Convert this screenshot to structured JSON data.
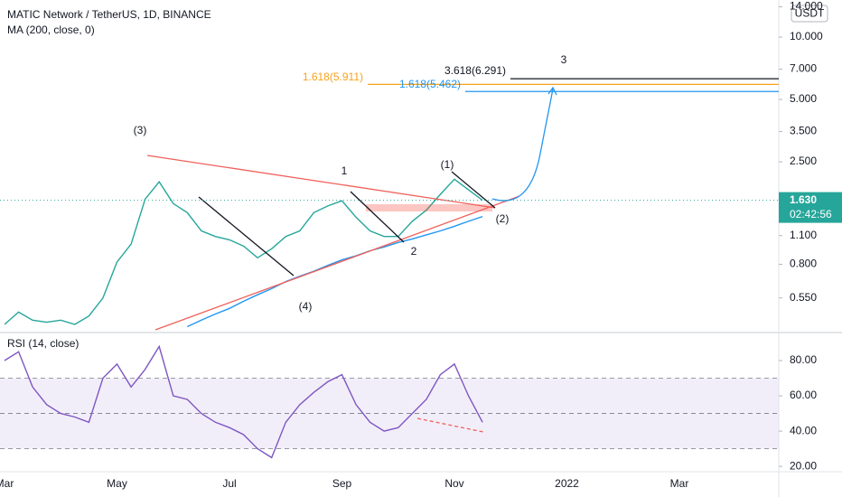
{
  "header": {
    "symbol": "MATIC Network / TetherUS, 1D, BINANCE",
    "indicator": "MA (200, close, 0)",
    "currency": "USDT"
  },
  "chart_data": [
    {
      "type": "line",
      "log_scale": true,
      "categories": [
        "Mar",
        null,
        null,
        null,
        null,
        null,
        null,
        null,
        "May",
        null,
        null,
        null,
        null,
        null,
        null,
        null,
        "Jul",
        null,
        null,
        null,
        null,
        null,
        null,
        null,
        "Sep",
        null,
        null,
        null,
        null,
        null,
        null,
        null,
        "Nov",
        null,
        null,
        null,
        null,
        null,
        null,
        null,
        "2022",
        null,
        null,
        null,
        null,
        null,
        null,
        null,
        "Mar",
        null,
        null,
        null,
        null,
        null,
        null,
        null
      ],
      "series": [
        {
          "name": "MATIC/USDT",
          "color": "#26a69a",
          "values": [
            0.41,
            0.47,
            0.43,
            0.42,
            0.43,
            0.41,
            0.45,
            0.55,
            0.82,
            1.0,
            1.65,
            2.0,
            1.57,
            1.42,
            1.16,
            1.09,
            1.05,
            0.98,
            0.86,
            0.95,
            1.09,
            1.16,
            1.42,
            1.53,
            1.62,
            1.35,
            1.16,
            1.09,
            1.09,
            1.29,
            1.46,
            1.74,
            2.06,
            1.83,
            1.63,
            null,
            null,
            null,
            null,
            null,
            null,
            null,
            null,
            null,
            null,
            null,
            null,
            null,
            null,
            null,
            null,
            null,
            null,
            null,
            null,
            null
          ]
        },
        {
          "name": "MA (200)",
          "color": "#2196f3",
          "values": [
            null,
            null,
            null,
            null,
            null,
            null,
            null,
            null,
            null,
            null,
            null,
            null,
            null,
            0.4,
            0.43,
            0.46,
            0.49,
            0.53,
            0.57,
            0.61,
            0.66,
            0.7,
            0.74,
            0.79,
            0.84,
            0.88,
            0.93,
            0.97,
            1.02,
            1.06,
            1.11,
            1.16,
            1.22,
            1.29,
            1.36,
            null,
            null,
            null,
            null,
            null,
            null,
            null,
            null,
            null,
            null,
            null,
            null,
            null,
            null,
            null,
            null,
            null,
            null,
            null,
            null,
            null
          ]
        }
      ],
      "ylim": [
        0.386,
        15.1
      ],
      "yticks": [
        {
          "value": 0.55,
          "label": "0.550"
        },
        {
          "value": 0.8,
          "label": "0.800"
        },
        {
          "value": 1.1,
          "label": "1.100"
        },
        {
          "value": 2.5,
          "label": "2.500"
        },
        {
          "value": 3.5,
          "label": "3.500"
        },
        {
          "value": 5,
          "label": "5.000"
        },
        {
          "value": 7,
          "label": "7.000"
        },
        {
          "value": 10,
          "label": "10.000"
        },
        {
          "value": 14,
          "label": "14.000"
        }
      ],
      "current_price": {
        "value": 1.63,
        "label": "1.630"
      },
      "countdown": "02:42:56",
      "levels": [
        {
          "label": "3.618(6.291)",
          "value": 6.291,
          "color": "#131722"
        },
        {
          "label": "1.618(5.911)",
          "value": 5.911,
          "color": "#f7a21b"
        },
        {
          "label": "1.618(5.462)",
          "value": 5.462,
          "color": "#2196f3"
        }
      ],
      "annotations": [
        "(3)",
        "1",
        "2",
        "(4)",
        "(1)",
        "(2)",
        "3"
      ]
    },
    {
      "type": "line",
      "title": "RSI (14, close)",
      "series": [
        {
          "name": "RSI",
          "color": "#7e57c2",
          "values": [
            80,
            85,
            65,
            55,
            50,
            48,
            45,
            70,
            78,
            65,
            75,
            88,
            60,
            58,
            50,
            45,
            42,
            38,
            30,
            25,
            45,
            55,
            62,
            68,
            72,
            55,
            45,
            40,
            42,
            50,
            58,
            72,
            78,
            60,
            45,
            null,
            null,
            null,
            null,
            null,
            null,
            null,
            null,
            null,
            null,
            null,
            null,
            null,
            null,
            null,
            null,
            null,
            null,
            null,
            null,
            null
          ]
        }
      ],
      "ylim": [
        17,
        92.3
      ],
      "yticks": [
        {
          "value": 20,
          "label": "20.00"
        },
        {
          "value": 40,
          "label": "40.00"
        },
        {
          "value": 60,
          "label": "60.00"
        },
        {
          "value": 80,
          "label": "80.00"
        }
      ],
      "band": [
        30,
        70
      ],
      "midline": 50
    }
  ]
}
